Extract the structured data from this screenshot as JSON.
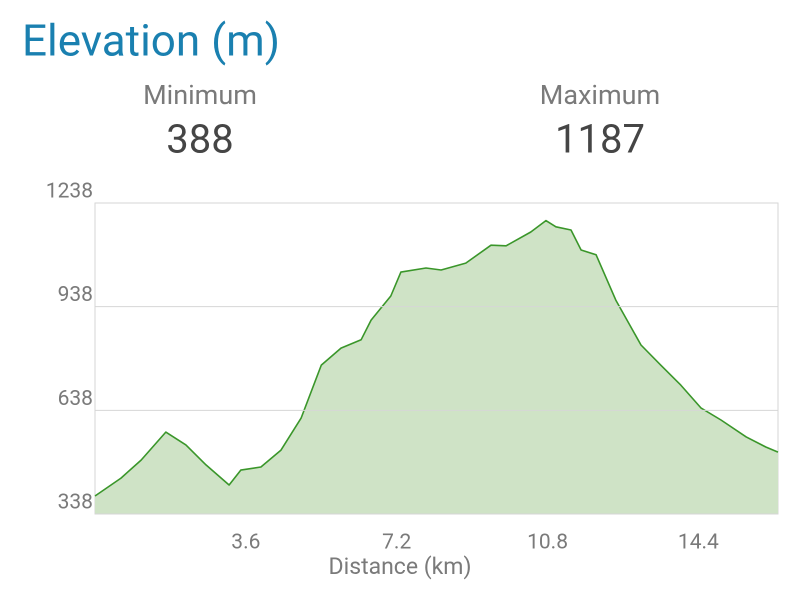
{
  "chart_data": {
    "type": "area",
    "title": "Elevation (m)",
    "xlabel": "Distance (km)",
    "summary": [
      {
        "label": "Minimum",
        "value": 388
      },
      {
        "label": "Maximum",
        "value": 1187
      }
    ],
    "x": [
      0,
      0.62,
      1.1,
      1.69,
      2.17,
      2.65,
      3.2,
      3.48,
      3.96,
      4.44,
      4.92,
      5.4,
      5.87,
      6.35,
      6.59,
      7.06,
      7.3,
      7.9,
      8.26,
      8.85,
      9.45,
      9.81,
      10.4,
      10.76,
      11.0,
      11.36,
      11.6,
      11.96,
      12.43,
      13.03,
      13.5,
      13.98,
      14.46,
      14.94,
      15.54,
      16.01,
      16.3
    ],
    "values": [
      390,
      442,
      494,
      575,
      538,
      480,
      422,
      465,
      474,
      523,
      616,
      769,
      818,
      842,
      899,
      969,
      1038,
      1050,
      1044,
      1064,
      1116,
      1114,
      1154,
      1187,
      1169,
      1160,
      1102,
      1088,
      957,
      827,
      769,
      711,
      645,
      610,
      561,
      532,
      517
    ],
    "color": "#3a962a",
    "fill": "#cfe3c6",
    "xlim": [
      0,
      16.3
    ],
    "xticks": [
      3.6,
      7.2,
      10.8,
      14.4
    ],
    "ylim": [
      338,
      1238
    ],
    "yticks": [
      338,
      638,
      938,
      1238
    ],
    "grid": true
  }
}
